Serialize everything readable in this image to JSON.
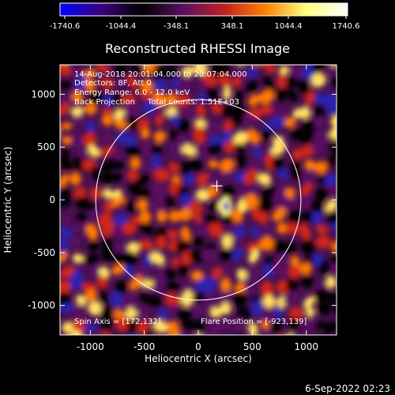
{
  "colorbar": {
    "ticks": [
      "-1740.6",
      "-1044.4",
      "-348.1",
      "348.1",
      "1044.4",
      "1740.6"
    ],
    "gradient": [
      "#0000ff",
      "#3c0080",
      "#000000",
      "#5a1060",
      "#c02020",
      "#ff8000",
      "#ffff80",
      "#ffffff"
    ]
  },
  "chart_data": {
    "type": "heatmap",
    "title": "Reconstructed RHESSI Image",
    "xlabel": "Heliocentric X (arcsec)",
    "ylabel": "Heliocentric Y (arcsec)",
    "xlim": [
      -1280,
      1280
    ],
    "ylim": [
      -1280,
      1280
    ],
    "xticks": [
      -1000,
      -500,
      0,
      500,
      1000
    ],
    "yticks": [
      -1000,
      -500,
      0,
      500,
      1000
    ],
    "clim": [
      -1740.6,
      1740.6
    ],
    "annotations": [
      "14-Aug-2018 20:01:04.000 to 20:07:04.000",
      "Detectors: 8F, Att 0",
      "Energy Range: 6.0 - 12.0 keV",
      "Back Projection     Total counts: 1.51E+03"
    ],
    "spin_axis": "Spin Axis = [172,132]",
    "flare_position": "Flare Position = [-923,139]",
    "solar_disk_radius": 950,
    "spin_axis_marker": [
      172,
      132
    ],
    "footer": "6-Sep-2022 02:23"
  }
}
